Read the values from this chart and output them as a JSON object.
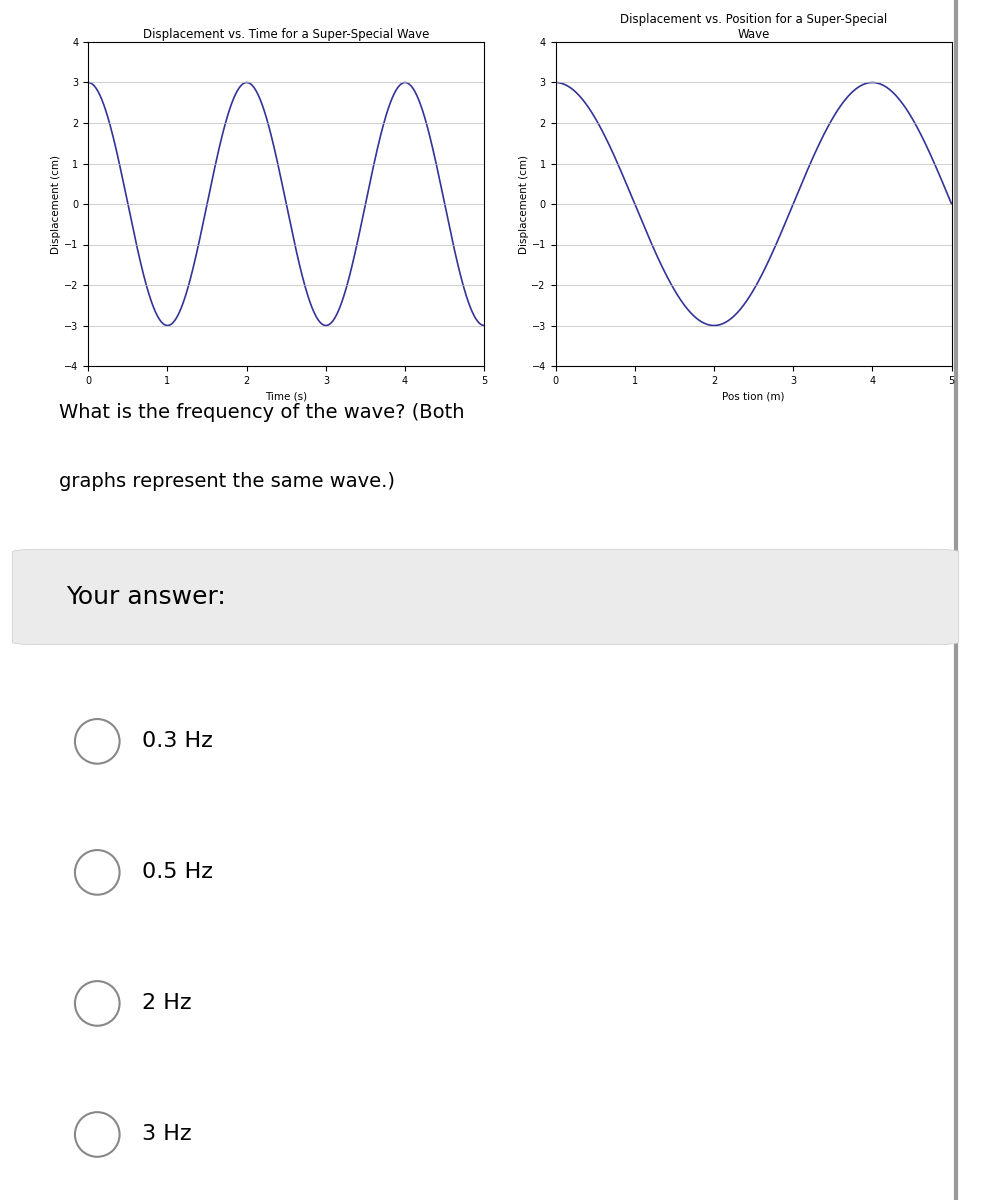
{
  "graph1_title": "Displacement vs. Time for a Super-Special Wave",
  "graph2_title": "Displacement vs. Position for a Super-Special\nWave",
  "graph1_xlabel": "Time (s)",
  "graph2_xlabel": "Pos tion (m)",
  "ylabel": "Displacement (cm)",
  "amplitude": 3,
  "period1": 2,
  "period2": 4,
  "xmin": 0,
  "xmax": 5,
  "ymin": -4,
  "ymax": 4,
  "yticks": [
    -4,
    -3,
    -2,
    -1,
    0,
    1,
    2,
    3,
    4
  ],
  "xticks": [
    0,
    1,
    2,
    3,
    4,
    5
  ],
  "line_color": "#333399",
  "bg_color": "#ffffff",
  "question_text1": "What is the frequency of the wave? (Both",
  "question_text2": "graphs represent the same wave.)",
  "answer_label": "Your answer:",
  "choices": [
    "0.3 Hz",
    "0.5 Hz",
    "2 Hz",
    "3 Hz"
  ],
  "answer_bg": "#ebebeb",
  "outer_bg": "#ffffff",
  "page_bg": "#f5f5f5",
  "font_size_title": 8.5,
  "font_size_axis_label": 7.5,
  "font_size_tick": 7,
  "font_size_question": 14,
  "font_size_answer_label": 18,
  "font_size_choices": 16,
  "radio_color": "#888888",
  "border_color": "#aaaaaa"
}
